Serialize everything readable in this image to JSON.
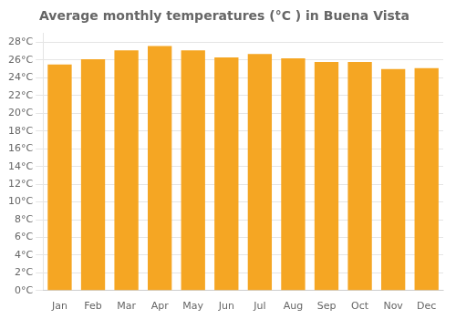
{
  "chart_data": {
    "type": "bar",
    "title": "Average monthly temperatures (°C ) in Buena Vista",
    "categories": [
      "Jan",
      "Feb",
      "Mar",
      "Apr",
      "May",
      "Jun",
      "Jul",
      "Aug",
      "Sep",
      "Oct",
      "Nov",
      "Dec"
    ],
    "values": [
      25.5,
      26.1,
      27.1,
      27.6,
      27.1,
      26.3,
      26.7,
      26.2,
      25.8,
      25.8,
      25.0,
      25.1
    ],
    "color": "#F5A623",
    "ylim": [
      0,
      29
    ],
    "yticks": [
      {
        "value": 0,
        "label": "0°C"
      },
      {
        "value": 2,
        "label": "2°C"
      },
      {
        "value": 4,
        "label": "4°C"
      },
      {
        "value": 6,
        "label": "6°C"
      },
      {
        "value": 8,
        "label": "8°C"
      },
      {
        "value": 10,
        "label": "10°C"
      },
      {
        "value": 12,
        "label": "12°C"
      },
      {
        "value": 14,
        "label": "14°C"
      },
      {
        "value": 16,
        "label": "16°C"
      },
      {
        "value": 18,
        "label": "18°C"
      },
      {
        "value": 20,
        "label": "20°C"
      },
      {
        "value": 22,
        "label": "22°C"
      },
      {
        "value": 24,
        "label": "24°C"
      },
      {
        "value": 26,
        "label": "26°C"
      },
      {
        "value": 28,
        "label": "28°C"
      }
    ],
    "grid": true
  }
}
